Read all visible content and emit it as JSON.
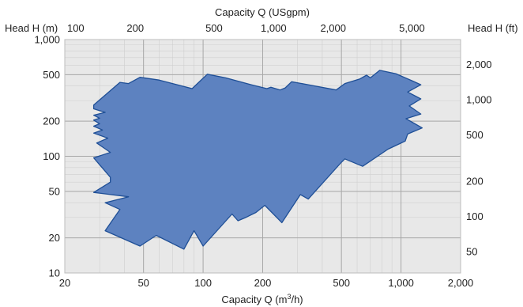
{
  "chart_data": {
    "type": "area",
    "title": "",
    "xlabel": "Capacity Q (m³/h)",
    "xlabel_prefix": "Capacity Q (m",
    "xlabel_sup": "3",
    "xlabel_suffix": "/h)",
    "ylabel": "Head H (m)",
    "secondary_xlabel": "Capacity Q (USgpm)",
    "secondary_ylabel": "Head H (ft)",
    "x_scale": "log",
    "y_scale": "log",
    "xlim": [
      20,
      2000
    ],
    "ylim": [
      10,
      1000
    ],
    "grid": true,
    "x_ticks": [
      {
        "value": 20,
        "label": "20"
      },
      {
        "value": 50,
        "label": "50"
      },
      {
        "value": 100,
        "label": "100"
      },
      {
        "value": 200,
        "label": "200"
      },
      {
        "value": 500,
        "label": "500"
      },
      {
        "value": 1000,
        "label": "1,000"
      },
      {
        "value": 2000,
        "label": "2,000"
      }
    ],
    "y_ticks": [
      {
        "value": 10,
        "label": "10"
      },
      {
        "value": 20,
        "label": "20"
      },
      {
        "value": 50,
        "label": "50"
      },
      {
        "value": 100,
        "label": "100"
      },
      {
        "value": 200,
        "label": "200"
      },
      {
        "value": 500,
        "label": "500"
      },
      {
        "value": 1000,
        "label": "1,000"
      }
    ],
    "top_ticks": [
      {
        "value": 100,
        "label": "100"
      },
      {
        "value": 200,
        "label": "200"
      },
      {
        "value": 500,
        "label": "500"
      },
      {
        "value": 1000,
        "label": "1,000"
      },
      {
        "value": 2000,
        "label": "2,000"
      },
      {
        "value": 5000,
        "label": "5,000"
      }
    ],
    "right_ticks": [
      {
        "value": 50,
        "label": "50"
      },
      {
        "value": 100,
        "label": "100"
      },
      {
        "value": 200,
        "label": "200"
      },
      {
        "value": 500,
        "label": "500"
      },
      {
        "value": 1000,
        "label": "1,000"
      },
      {
        "value": 2000,
        "label": "2,000"
      }
    ],
    "colors": {
      "plot_background": "#e8e8e8",
      "grid_minor": "#cfcfcf",
      "grid_major": "#a8a8a8",
      "area_fill": "#5d82c0",
      "area_stroke": "#1f4f96"
    },
    "series": [
      {
        "polygon": [
          [
            28,
            275
          ],
          [
            38,
            430
          ],
          [
            42,
            420
          ],
          [
            48,
            475
          ],
          [
            60,
            450
          ],
          [
            88,
            380
          ],
          [
            105,
            505
          ],
          [
            130,
            470
          ],
          [
            175,
            410
          ],
          [
            210,
            380
          ],
          [
            220,
            390
          ],
          [
            245,
            370
          ],
          [
            260,
            385
          ],
          [
            280,
            435
          ],
          [
            340,
            410
          ],
          [
            470,
            370
          ],
          [
            520,
            420
          ],
          [
            620,
            460
          ],
          [
            670,
            495
          ],
          [
            700,
            470
          ],
          [
            780,
            545
          ],
          [
            940,
            510
          ],
          [
            1150,
            440
          ],
          [
            1260,
            410
          ],
          [
            1080,
            355
          ],
          [
            1260,
            310
          ],
          [
            1100,
            270
          ],
          [
            1260,
            230
          ],
          [
            1060,
            210
          ],
          [
            1280,
            175
          ],
          [
            1080,
            155
          ],
          [
            1050,
            135
          ],
          [
            860,
            115
          ],
          [
            640,
            82
          ],
          [
            520,
            95
          ],
          [
            500,
            89
          ],
          [
            340,
            43
          ],
          [
            310,
            47
          ],
          [
            250,
            27
          ],
          [
            205,
            38
          ],
          [
            185,
            33
          ],
          [
            165,
            30
          ],
          [
            150,
            28
          ],
          [
            140,
            32
          ],
          [
            100,
            17
          ],
          [
            90,
            23
          ],
          [
            80,
            16
          ],
          [
            58,
            21
          ],
          [
            48,
            17
          ],
          [
            32,
            23
          ],
          [
            38,
            35
          ],
          [
            32,
            40
          ],
          [
            42,
            45
          ],
          [
            28,
            49
          ],
          [
            34,
            60
          ],
          [
            34,
            66
          ],
          [
            28,
            97
          ],
          [
            34,
            108
          ],
          [
            29,
            130
          ],
          [
            33,
            143
          ],
          [
            28,
            158
          ],
          [
            31,
            168
          ],
          [
            28,
            181
          ],
          [
            30,
            190
          ],
          [
            28,
            204
          ],
          [
            30,
            212
          ],
          [
            28,
            225
          ],
          [
            32,
            238
          ],
          [
            28,
            255
          ],
          [
            28,
            275
          ]
        ]
      }
    ]
  }
}
